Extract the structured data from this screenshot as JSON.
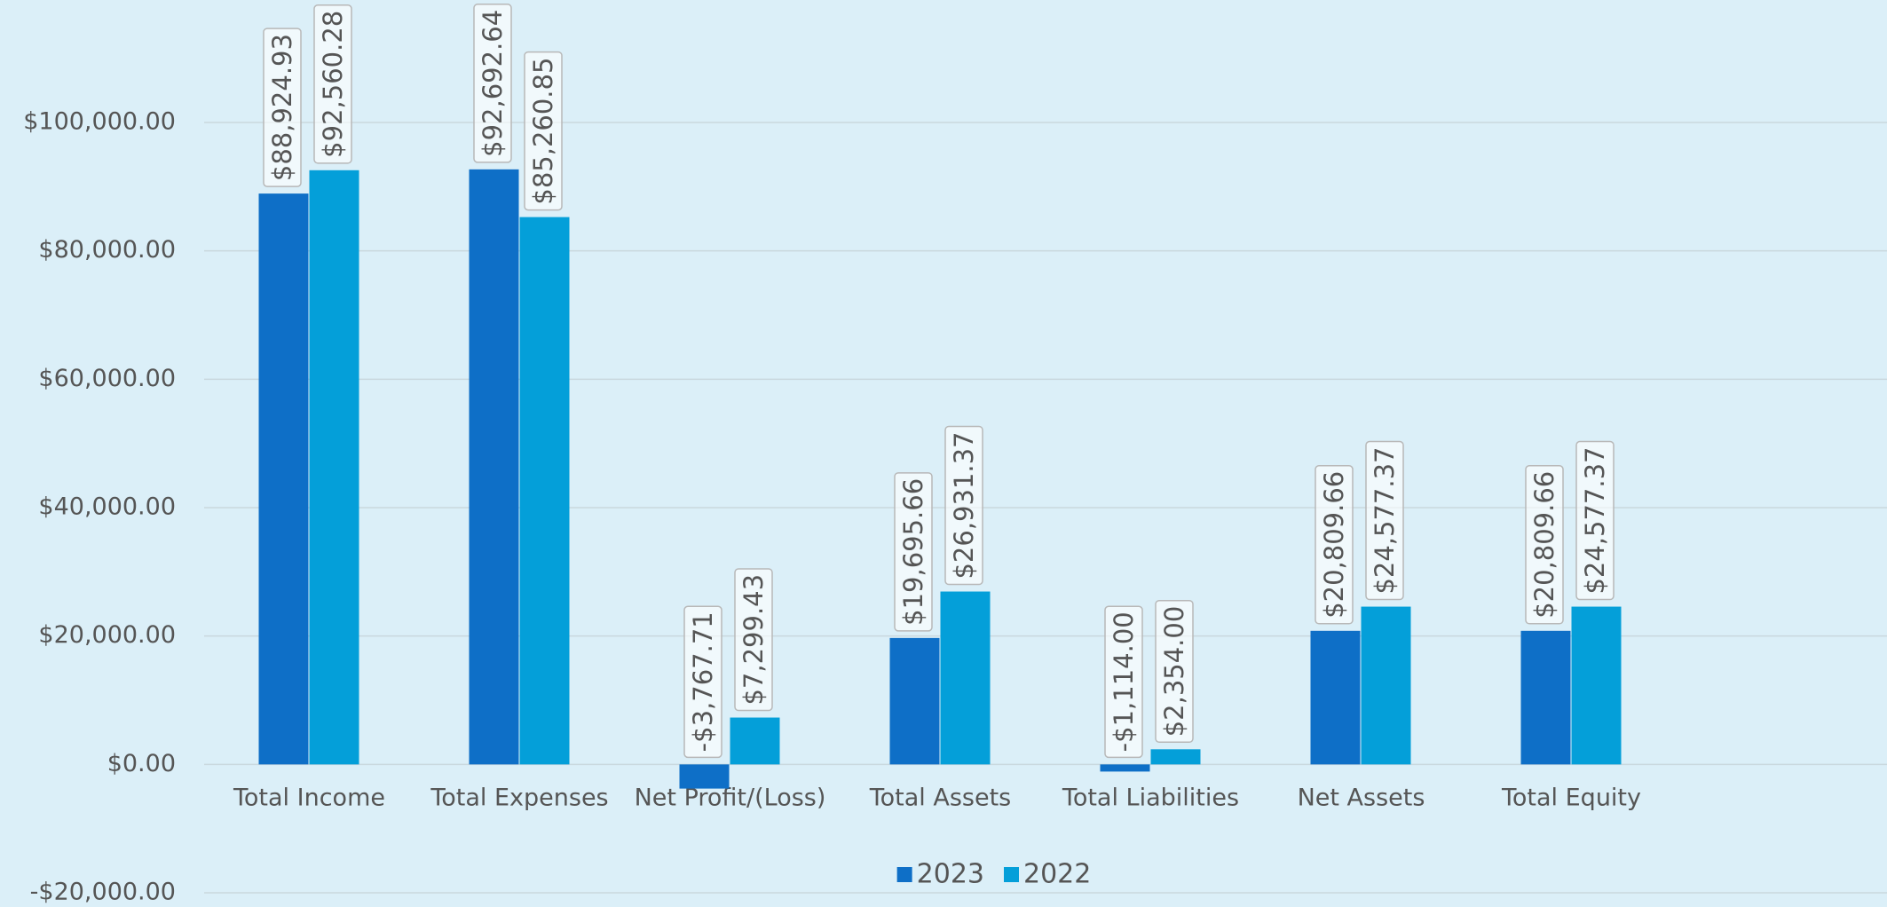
{
  "chart_data": {
    "type": "bar",
    "categories": [
      "Total Income",
      "Total Expenses",
      "Net Profit/(Loss)",
      "Total Assets",
      "Total Liabilities",
      "Net Assets",
      "Total Equity",
      null
    ],
    "series": [
      {
        "name": "2023",
        "color": "#0e6fc7",
        "values": [
          88924.93,
          92692.64,
          -3767.71,
          19695.66,
          -1114.0,
          20809.66,
          20809.66,
          null
        ],
        "value_labels": [
          "$88,924.93",
          "$92,692.64",
          "-$3,767.71",
          "$19,695.66",
          "-$1,114.00",
          "$20,809.66",
          "$20,809.66",
          null
        ]
      },
      {
        "name": "2022",
        "color": "#049fd9",
        "values": [
          92560.28,
          85260.85,
          7299.43,
          26931.37,
          2354.0,
          24577.37,
          24577.37,
          null
        ],
        "value_labels": [
          "$92,560.28",
          "$85,260.85",
          "$7,299.43",
          "$26,931.37",
          "$2,354.00",
          "$24,577.37",
          "$24,577.37",
          null
        ]
      }
    ],
    "ylim": [
      -20000,
      100000
    ],
    "yticks": [
      {
        "value": -20000,
        "label": "-$20,000.00"
      },
      {
        "value": 0,
        "label": "$0.00"
      },
      {
        "value": 20000,
        "label": "$20,000.00"
      },
      {
        "value": 40000,
        "label": "$40,000.00"
      },
      {
        "value": 60000,
        "label": "$60,000.00"
      },
      {
        "value": 80000,
        "label": "$80,000.00"
      },
      {
        "value": 100000,
        "label": "$100,000.00"
      }
    ],
    "grid": true,
    "legend": "bottom"
  }
}
